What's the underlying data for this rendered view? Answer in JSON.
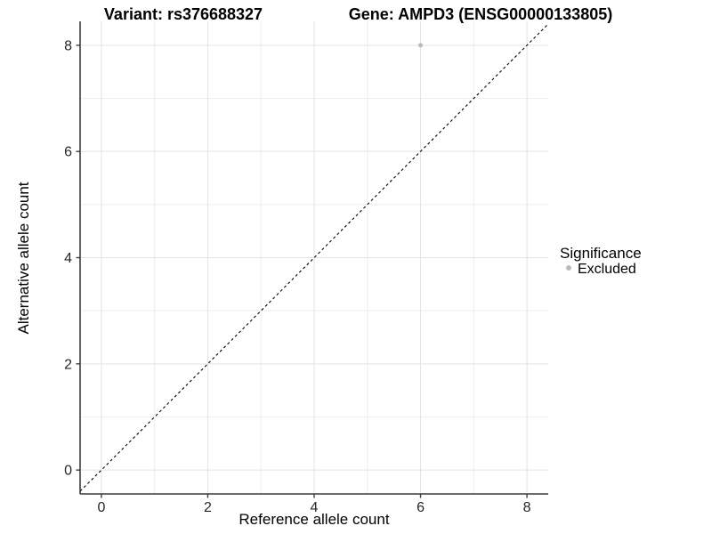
{
  "titles": {
    "variant": "Variant: rs376688327",
    "gene": "Gene: AMPD3 (ENSG00000133805)"
  },
  "axes": {
    "x_label": "Reference allele count",
    "y_label": "Alternative allele count"
  },
  "legend": {
    "title": "Significance",
    "items": [
      {
        "label": "Excluded",
        "color": "#bcbcbc",
        "marker": "circle-icon"
      }
    ]
  },
  "colors": {
    "background": "#ffffff",
    "grid_major": "#e3e3e3",
    "grid_minor": "#eeeeee",
    "axis_line": "#3c3c3c",
    "tick_text": "#262626",
    "title_text": "#000000",
    "identity_line": "#000000",
    "point": "#bcbcbc"
  },
  "chart_data": {
    "type": "scatter",
    "title": "Variant: rs376688327    Gene: AMPD3 (ENSG00000133805)",
    "xlabel": "Reference allele count",
    "ylabel": "Alternative allele count",
    "xlim": [
      -0.4,
      8.4
    ],
    "ylim": [
      -0.45,
      8.45
    ],
    "x_ticks": [
      0,
      2,
      4,
      6,
      8
    ],
    "y_ticks": [
      0,
      2,
      4,
      6,
      8
    ],
    "x_minor_ticks": [
      1,
      3,
      5,
      7
    ],
    "y_minor_ticks": [
      1,
      3,
      5,
      7
    ],
    "grid": true,
    "legend_position": "right",
    "series": [
      {
        "name": "Excluded",
        "color": "#bcbcbc",
        "points": [
          {
            "x": 6,
            "y": 8
          }
        ]
      }
    ],
    "identity_line": {
      "type": "abline",
      "slope": 1,
      "intercept": 0,
      "style": "dashed",
      "color": "#000000"
    }
  }
}
